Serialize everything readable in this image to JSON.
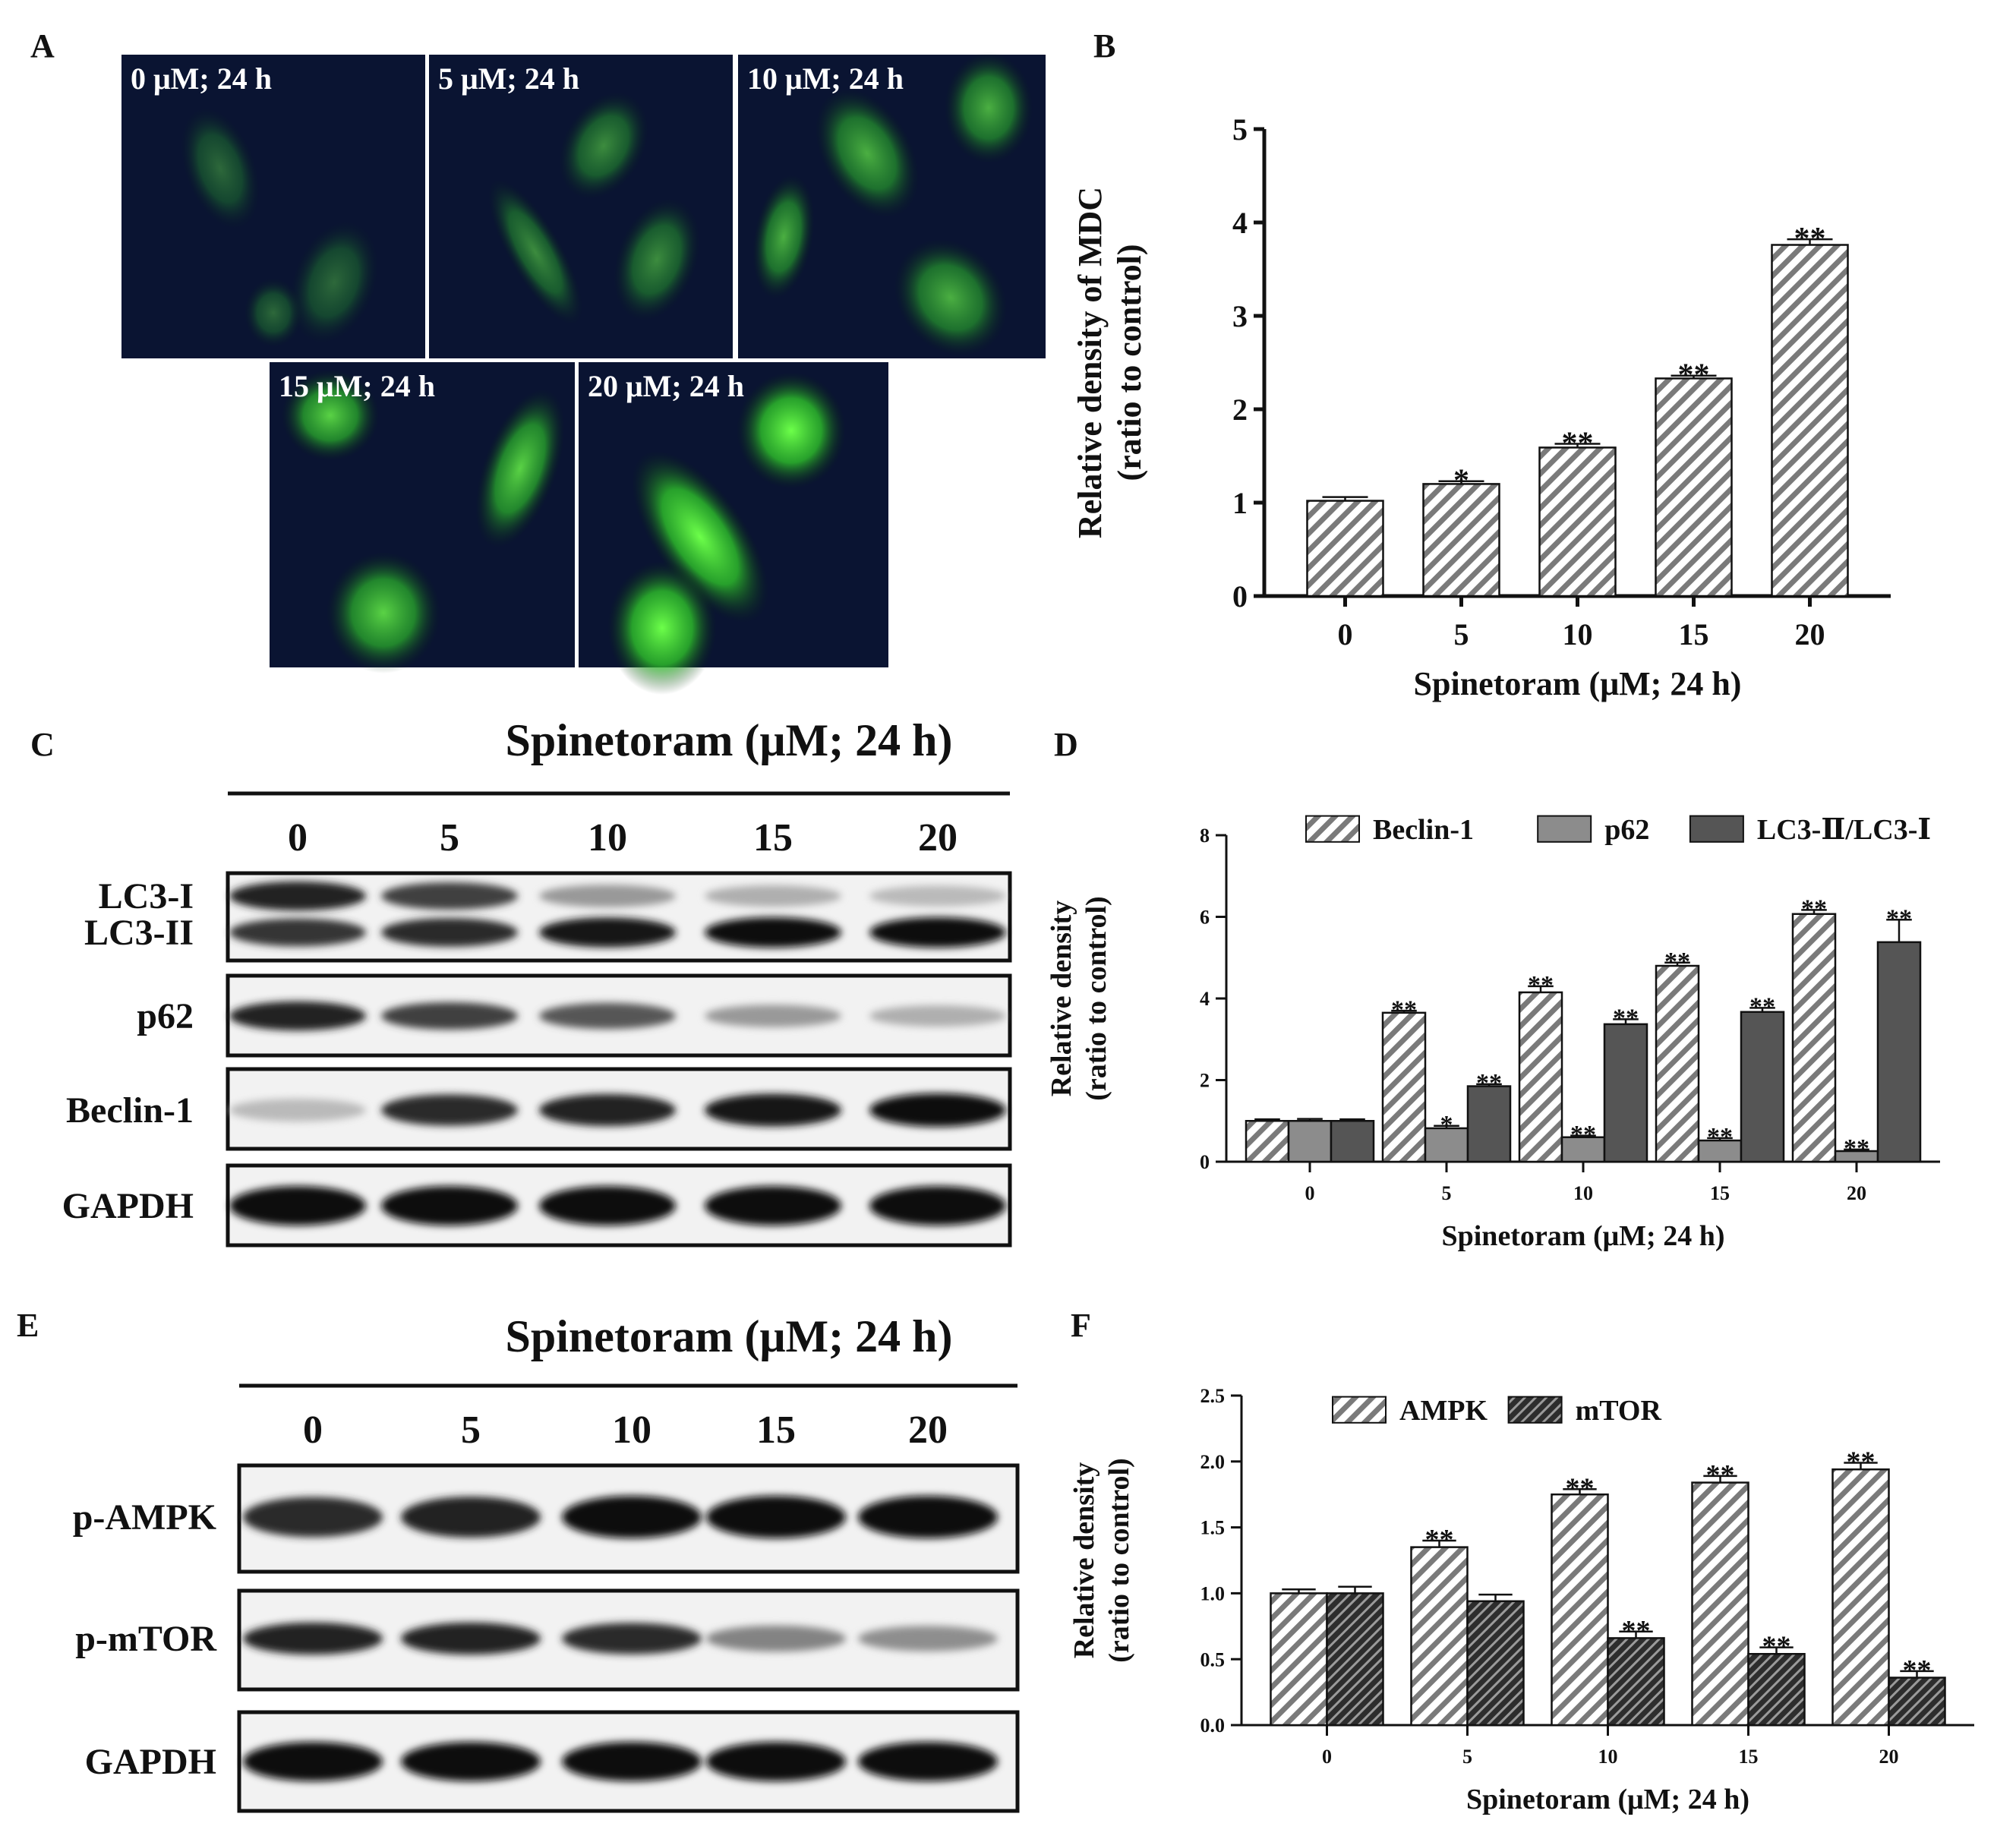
{
  "panels": {
    "A": {
      "letter": "A",
      "images": [
        {
          "label": "0 μM; 24 h",
          "intensity": 0.15
        },
        {
          "label": "5 μM; 24 h",
          "intensity": 0.35
        },
        {
          "label": "10 μM; 24 h",
          "intensity": 0.55
        },
        {
          "label": "15 μM; 24 h",
          "intensity": 0.75
        },
        {
          "label": "20 μM; 24 h",
          "intensity": 1.0
        }
      ]
    },
    "B": {
      "letter": "B"
    },
    "C": {
      "letter": "C",
      "title": "Spinetoram (μM; 24 h)",
      "lanes": [
        "0",
        "5",
        "10",
        "15",
        "20"
      ],
      "rows": [
        {
          "label": "LC3-I",
          "intensities": [
            0.9,
            0.75,
            0.35,
            0.25,
            0.2
          ]
        },
        {
          "label": "LC3-II",
          "intensities": [
            0.8,
            0.85,
            0.95,
            1.0,
            1.0
          ]
        },
        {
          "label": "p62",
          "intensities": [
            0.9,
            0.75,
            0.65,
            0.35,
            0.25
          ]
        },
        {
          "label": "Beclin-1",
          "intensities": [
            0.2,
            0.85,
            0.9,
            0.95,
            1.0
          ]
        },
        {
          "label": "GAPDH",
          "intensities": [
            1.0,
            1.0,
            1.0,
            1.0,
            1.0
          ]
        }
      ]
    },
    "D": {
      "letter": "D"
    },
    "E": {
      "letter": "E",
      "title": "Spinetoram (μM; 24 h)",
      "lanes": [
        "0",
        "5",
        "10",
        "15",
        "20"
      ],
      "rows": [
        {
          "label": "p-AMPK",
          "intensities": [
            0.85,
            0.9,
            1.0,
            1.0,
            1.0
          ]
        },
        {
          "label": "p-mTOR",
          "intensities": [
            0.9,
            0.9,
            0.85,
            0.45,
            0.4
          ]
        },
        {
          "label": "GAPDH",
          "intensities": [
            1.0,
            1.0,
            1.0,
            1.0,
            1.0
          ]
        }
      ]
    },
    "F": {
      "letter": "F"
    }
  },
  "chart_data": [
    {
      "id": "B",
      "type": "bar",
      "categories": [
        "0",
        "5",
        "10",
        "15",
        "20"
      ],
      "series": [
        {
          "values": [
            1.02,
            1.2,
            1.59,
            2.33,
            3.76
          ],
          "errors": [
            0.04,
            0.03,
            0.04,
            0.03,
            0.06
          ],
          "sig": [
            "",
            "*",
            "**",
            "**",
            "**"
          ],
          "pattern": "hatch-light",
          "color": "#8a8a8a"
        }
      ],
      "xlabel": "Spinetoram (μM; 24 h)",
      "ylabel_lines": [
        "Relative density of MDC",
        "(ratio to control)"
      ],
      "ylim": [
        0,
        5
      ],
      "yticks": [
        "0",
        "1",
        "2",
        "3",
        "4",
        "5"
      ]
    },
    {
      "id": "D",
      "type": "bar",
      "categories": [
        "0",
        "5",
        "10",
        "15",
        "20"
      ],
      "series": [
        {
          "name": "Beclin-1",
          "values": [
            1.0,
            3.65,
            4.15,
            4.8,
            6.07
          ],
          "errors": [
            0.04,
            0.05,
            0.15,
            0.08,
            0.1
          ],
          "sig": [
            "",
            "**",
            "**",
            "**",
            "**"
          ],
          "pattern": "hatch-light",
          "color": "#8a8a8a"
        },
        {
          "name": "p62",
          "values": [
            1.0,
            0.82,
            0.6,
            0.52,
            0.26
          ],
          "errors": [
            0.05,
            0.06,
            0.04,
            0.06,
            0.04
          ],
          "sig": [
            "",
            "*",
            "**",
            "**",
            "**"
          ],
          "pattern": "solid",
          "color": "#8c8c8c"
        },
        {
          "name": "LC3-Ⅱ/LC3-Ⅰ",
          "values": [
            1.0,
            1.85,
            3.37,
            3.67,
            5.38
          ],
          "errors": [
            0.04,
            0.05,
            0.12,
            0.1,
            0.55
          ],
          "sig": [
            "",
            "**",
            "**",
            "**",
            "**"
          ],
          "pattern": "solid",
          "color": "#555555"
        }
      ],
      "xlabel": "Spinetoram (μM; 24 h)",
      "ylabel_lines": [
        "Relative density",
        "(ratio to control)"
      ],
      "ylim": [
        0,
        8
      ],
      "yticks": [
        "0",
        "2",
        "4",
        "6",
        "8"
      ],
      "legend": "top"
    },
    {
      "id": "F",
      "type": "bar",
      "categories": [
        "0",
        "5",
        "10",
        "15",
        "20"
      ],
      "series": [
        {
          "name": "AMPK",
          "values": [
            1.0,
            1.35,
            1.75,
            1.84,
            1.94
          ],
          "errors": [
            0.03,
            0.05,
            0.04,
            0.05,
            0.05
          ],
          "sig": [
            "",
            "**",
            "**",
            "**",
            "**"
          ],
          "pattern": "hatch-light",
          "color": "#8a8a8a"
        },
        {
          "name": "mTOR",
          "values": [
            1.0,
            0.94,
            0.66,
            0.54,
            0.36
          ],
          "errors": [
            0.05,
            0.05,
            0.05,
            0.05,
            0.05
          ],
          "sig": [
            "",
            "",
            "**",
            "**",
            "**"
          ],
          "pattern": "hatch-dark",
          "color": "#3a3a3a"
        }
      ],
      "xlabel": "Spinetoram (μM; 24 h)",
      "ylabel_lines": [
        "Relative density",
        "(ratio to control)"
      ],
      "ylim": [
        0,
        2.5
      ],
      "yticks": [
        "0.0",
        "0.5",
        "1.0",
        "1.5",
        "2.0",
        "2.5"
      ],
      "legend": "top"
    }
  ]
}
